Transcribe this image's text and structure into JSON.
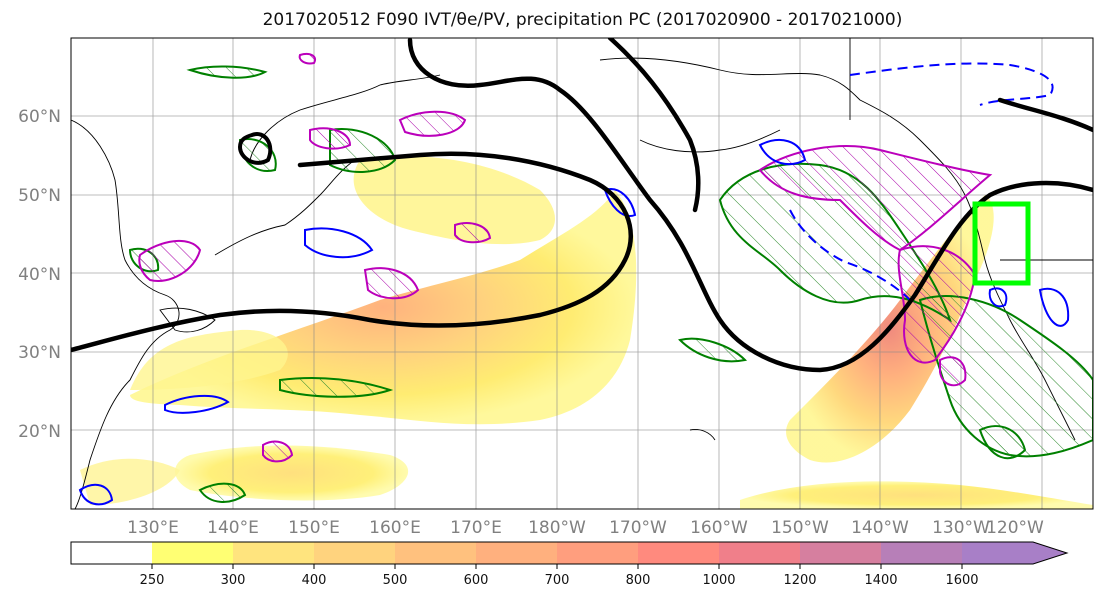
{
  "title": "2017020512 F090 IVT/θe/PV, precipitation PC (2017020900 - 2017021000)",
  "map": {
    "lat_labels": [
      "20°N",
      "30°N",
      "40°N",
      "50°N",
      "60°N"
    ],
    "lon_labels": [
      "130°E",
      "140°E",
      "150°E",
      "160°E",
      "170°E",
      "180°W",
      "170°W",
      "160°W",
      "150°W",
      "140°W",
      "130°W",
      "120°W"
    ],
    "colors": {
      "ivt_fill": "#ffe34d",
      "theta_e_contour": "#000000",
      "pv_contour_green": "#008000",
      "pv_contour_blue": "#0000ff",
      "pv_contour_magenta": "#bb00bb",
      "target_box": "#00ff00",
      "gridline": "#888888"
    }
  },
  "colorbar": {
    "labels": [
      "250",
      "300",
      "400",
      "500",
      "600",
      "700",
      "800",
      "1000",
      "1200",
      "1400",
      "1600"
    ],
    "colors": [
      "#ffffff",
      "#ffff73",
      "#ffe47e",
      "#ffd37e",
      "#ffc17e",
      "#ffb07e",
      "#ff9e7e",
      "#ff8a7e",
      "#f07f8a",
      "#d67f9f",
      "#b77fb8",
      "#a87fc7"
    ]
  }
}
